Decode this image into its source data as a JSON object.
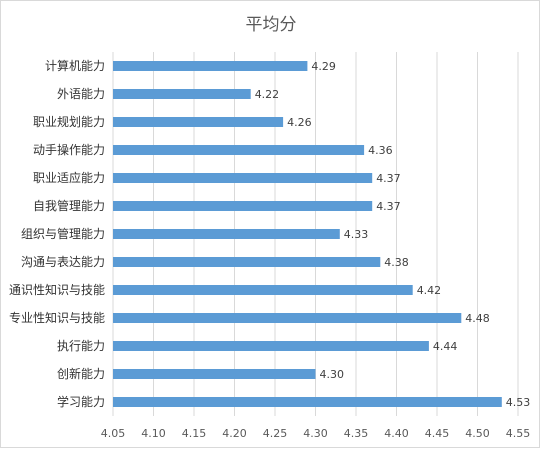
{
  "chart_data": {
    "type": "bar",
    "orientation": "horizontal",
    "title": "平均分",
    "categories": [
      "计算机能力",
      "外语能力",
      "职业规划能力",
      "动手操作能力",
      "职业适应能力",
      "自我管理能力",
      "组织与管理能力",
      "沟通与表达能力",
      "通识性知识与技能",
      "专业性知识与技能",
      "执行能力",
      "创新能力",
      "学习能力"
    ],
    "values": [
      4.29,
      4.22,
      4.26,
      4.36,
      4.37,
      4.37,
      4.33,
      4.38,
      4.42,
      4.48,
      4.44,
      4.3,
      4.53
    ],
    "value_labels": [
      "4.29",
      "4.22",
      "4.26",
      "4.36",
      "4.37",
      "4.37",
      "4.33",
      "4.38",
      "4.42",
      "4.48",
      "4.44",
      "4.30",
      "4.53"
    ],
    "xticks": [
      "4.05",
      "4.10",
      "4.15",
      "4.20",
      "4.25",
      "4.30",
      "4.35",
      "4.40",
      "4.45",
      "4.50",
      "4.55"
    ],
    "xlim": [
      4.05,
      4.55
    ],
    "grid": true,
    "bar_color": "#5b9bd5",
    "grid_color": "#d9d9d9"
  }
}
